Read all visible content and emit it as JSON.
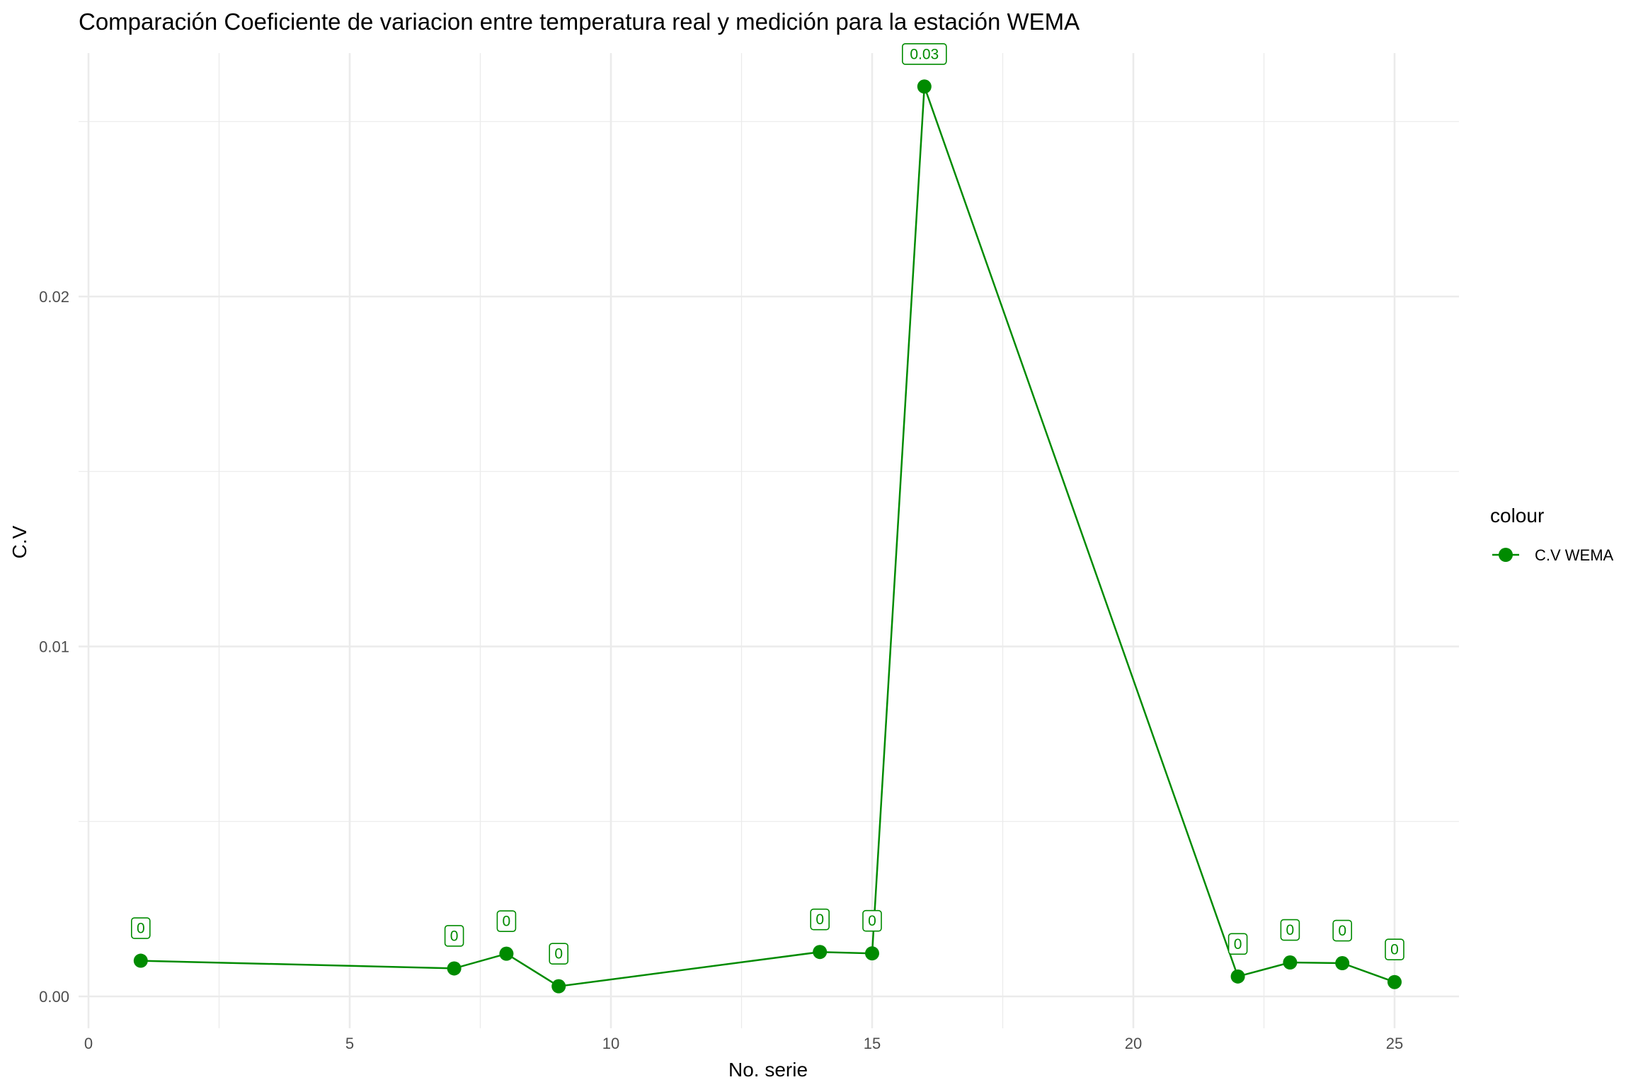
{
  "chart_data": {
    "type": "line",
    "title": "Comparación Coeficiente de variacion entre  temperatura real y medición para la estación WEMA",
    "xlabel": "No. serie",
    "ylabel": "C.V",
    "xlim": [
      0,
      26
    ],
    "ylim": [
      0,
      0.026
    ],
    "x_ticks": [
      0,
      5,
      10,
      15,
      20,
      25
    ],
    "x_tick_labels": [
      "0",
      "5",
      "10",
      "15",
      "20",
      "25"
    ],
    "y_ticks": [
      0,
      0.01,
      0.02
    ],
    "y_tick_labels": [
      "0.00",
      "0.01",
      "0.02"
    ],
    "grid": true,
    "legend": {
      "title": "colour",
      "position": "right"
    },
    "colors": {
      "series": "#008b00",
      "grid": "#ebebeb"
    },
    "series": [
      {
        "name": "C.V WEMA",
        "x": [
          1,
          7,
          8,
          9,
          14,
          15,
          16,
          22,
          23,
          24,
          25
        ],
        "y": [
          0.00102,
          0.0008,
          0.00122,
          0.00029,
          0.00127,
          0.00123,
          0.026,
          0.00057,
          0.00097,
          0.00095,
          0.00041
        ],
        "labels": [
          "0",
          "0",
          "0",
          "0",
          "0",
          "0",
          "0.03",
          "0",
          "0",
          "0",
          "0"
        ]
      }
    ]
  }
}
